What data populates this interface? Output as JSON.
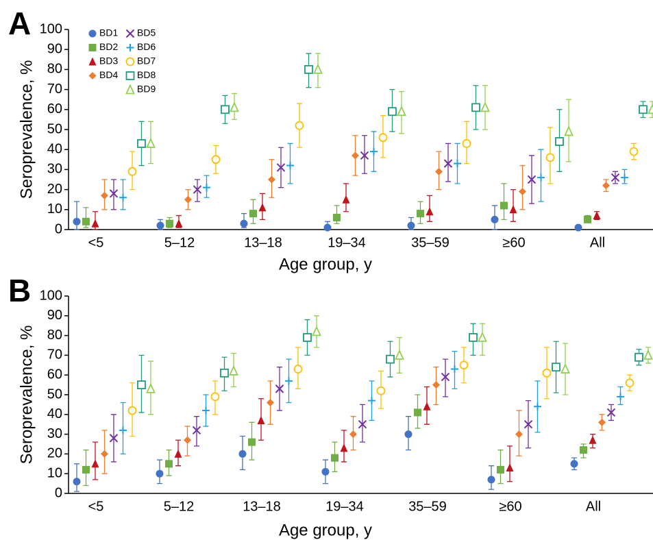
{
  "chart_data": [
    {
      "type": "dot",
      "panel": "A",
      "ylabel": "Seroprevalence, %",
      "xlabel": "Age group, y",
      "categories": [
        "<5",
        "5–12",
        "13–18",
        "19–34",
        "35–59",
        "≥60",
        "All"
      ],
      "ylim": [
        0,
        100
      ],
      "yticks": [
        0,
        10,
        20,
        30,
        40,
        50,
        60,
        70,
        80,
        90,
        100
      ],
      "legend": "top-left",
      "series": [
        {
          "name": "BD1",
          "color": "#4472c4",
          "marker": "circle",
          "values": [
            4,
            2,
            3,
            1,
            2,
            5,
            1
          ],
          "ci_low": [
            0,
            0,
            1,
            0,
            0,
            0,
            0
          ],
          "ci_high": [
            14,
            5,
            8,
            4,
            6,
            12,
            2
          ]
        },
        {
          "name": "BD2",
          "color": "#70ad47",
          "marker": "square",
          "values": [
            4,
            3,
            8,
            6,
            8,
            12,
            5
          ],
          "ci_low": [
            1,
            1,
            3,
            3,
            3,
            5,
            4
          ],
          "ci_high": [
            11,
            6,
            15,
            12,
            14,
            23,
            7
          ]
        },
        {
          "name": "BD3",
          "color": "#c0141c",
          "marker": "triangle",
          "values": [
            3,
            3,
            11,
            15,
            9,
            10,
            7
          ],
          "ci_low": [
            0,
            1,
            5,
            9,
            4,
            4,
            5
          ],
          "ci_high": [
            9,
            7,
            18,
            23,
            17,
            20,
            9
          ]
        },
        {
          "name": "BD4",
          "color": "#ed7d31",
          "marker": "diamond",
          "values": [
            17,
            15,
            25,
            37,
            29,
            19,
            22
          ],
          "ci_low": [
            10,
            10,
            16,
            27,
            20,
            10,
            19
          ],
          "ci_high": [
            25,
            20,
            35,
            47,
            39,
            32,
            25
          ]
        },
        {
          "name": "BD5",
          "color": "#7030a0",
          "marker": "x",
          "values": [
            18,
            20,
            31,
            37,
            33,
            25,
            26
          ],
          "ci_low": [
            10,
            14,
            21,
            28,
            24,
            13,
            23
          ],
          "ci_high": [
            25,
            25,
            41,
            47,
            43,
            37,
            29
          ]
        },
        {
          "name": "BD6",
          "color": "#1ea0dc",
          "marker": "plus",
          "values": [
            16,
            21,
            32,
            39,
            33,
            26,
            26
          ],
          "ci_low": [
            10,
            16,
            23,
            29,
            23,
            14,
            23
          ],
          "ci_high": [
            25,
            27,
            43,
            49,
            43,
            40,
            30
          ]
        },
        {
          "name": "BD7",
          "color": "#ffc000",
          "marker": "open-circle",
          "values": [
            29,
            35,
            52,
            46,
            43,
            36,
            39
          ],
          "ci_low": [
            20,
            28,
            41,
            36,
            33,
            23,
            35
          ],
          "ci_high": [
            39,
            42,
            63,
            57,
            54,
            51,
            43
          ]
        },
        {
          "name": "BD8",
          "color": "#1f9b7c",
          "marker": "open-square",
          "values": [
            43,
            60,
            80,
            59,
            61,
            44,
            60
          ],
          "ci_low": [
            32,
            53,
            71,
            49,
            50,
            29,
            56
          ],
          "ci_high": [
            54,
            67,
            88,
            70,
            72,
            60,
            64
          ]
        },
        {
          "name": "BD9",
          "color": "#92d050",
          "marker": "open-triangle",
          "values": [
            43,
            61,
            80,
            59,
            61,
            49,
            60
          ],
          "ci_low": [
            33,
            55,
            71,
            48,
            50,
            34,
            56
          ],
          "ci_high": [
            54,
            68,
            88,
            69,
            72,
            65,
            64
          ]
        }
      ]
    },
    {
      "type": "dot",
      "panel": "B",
      "ylabel": "Seroprevalence, %",
      "xlabel": "Age group, y",
      "categories": [
        "<5",
        "5–12",
        "13–18",
        "19–34",
        "35–59",
        "≥60",
        "All"
      ],
      "ylim": [
        0,
        100
      ],
      "yticks": [
        0,
        10,
        20,
        30,
        40,
        50,
        60,
        70,
        80,
        90,
        100
      ],
      "series": [
        {
          "color": "#4472c4",
          "marker": "circle",
          "values": [
            6,
            10,
            20,
            11,
            30,
            7,
            15
          ],
          "ci_low": [
            1,
            5,
            12,
            5,
            22,
            2,
            12
          ],
          "ci_high": [
            15,
            17,
            29,
            17,
            39,
            14,
            18
          ]
        },
        {
          "color": "#70ad47",
          "marker": "square",
          "values": [
            12,
            15,
            26,
            18,
            41,
            12,
            22
          ],
          "ci_low": [
            4,
            9,
            17,
            11,
            33,
            5,
            18
          ],
          "ci_high": [
            22,
            22,
            36,
            26,
            50,
            22,
            25
          ]
        },
        {
          "color": "#c0141c",
          "marker": "triangle",
          "values": [
            15,
            20,
            37,
            23,
            44,
            13,
            27
          ],
          "ci_low": [
            7,
            14,
            27,
            16,
            35,
            6,
            23
          ],
          "ci_high": [
            26,
            27,
            48,
            32,
            54,
            24,
            30
          ]
        },
        {
          "color": "#ed7d31",
          "marker": "diamond",
          "values": [
            20,
            27,
            46,
            30,
            55,
            30,
            36
          ],
          "ci_low": [
            10,
            19,
            35,
            22,
            45,
            19,
            32
          ],
          "ci_high": [
            32,
            34,
            57,
            39,
            64,
            42,
            40
          ]
        },
        {
          "color": "#7030a0",
          "marker": "x",
          "values": [
            28,
            32,
            53,
            35,
            59,
            35,
            41
          ],
          "ci_low": [
            16,
            24,
            42,
            26,
            49,
            23,
            37
          ],
          "ci_high": [
            40,
            39,
            64,
            45,
            68,
            47,
            45
          ]
        },
        {
          "color": "#1ea0dc",
          "marker": "plus",
          "values": [
            32,
            42,
            57,
            47,
            63,
            44,
            49
          ],
          "ci_low": [
            20,
            34,
            46,
            37,
            53,
            31,
            45
          ],
          "ci_high": [
            46,
            50,
            68,
            57,
            72,
            57,
            54
          ]
        },
        {
          "color": "#ffc000",
          "marker": "open-circle",
          "values": [
            42,
            49,
            63,
            52,
            65,
            61,
            56
          ],
          "ci_low": [
            29,
            40,
            53,
            43,
            56,
            48,
            52
          ],
          "ci_high": [
            56,
            57,
            74,
            62,
            74,
            74,
            60
          ]
        },
        {
          "color": "#1f9b7c",
          "marker": "open-square",
          "values": [
            55,
            61,
            79,
            68,
            79,
            64,
            69
          ],
          "ci_low": [
            41,
            52,
            70,
            59,
            70,
            51,
            65
          ],
          "ci_high": [
            70,
            69,
            88,
            77,
            86,
            77,
            73
          ]
        },
        {
          "color": "#92d050",
          "marker": "open-triangle",
          "values": [
            53,
            62,
            82,
            70,
            79,
            63,
            70
          ],
          "ci_low": [
            40,
            54,
            74,
            61,
            70,
            50,
            66
          ],
          "ci_high": [
            67,
            71,
            90,
            79,
            86,
            76,
            74
          ]
        }
      ]
    }
  ]
}
